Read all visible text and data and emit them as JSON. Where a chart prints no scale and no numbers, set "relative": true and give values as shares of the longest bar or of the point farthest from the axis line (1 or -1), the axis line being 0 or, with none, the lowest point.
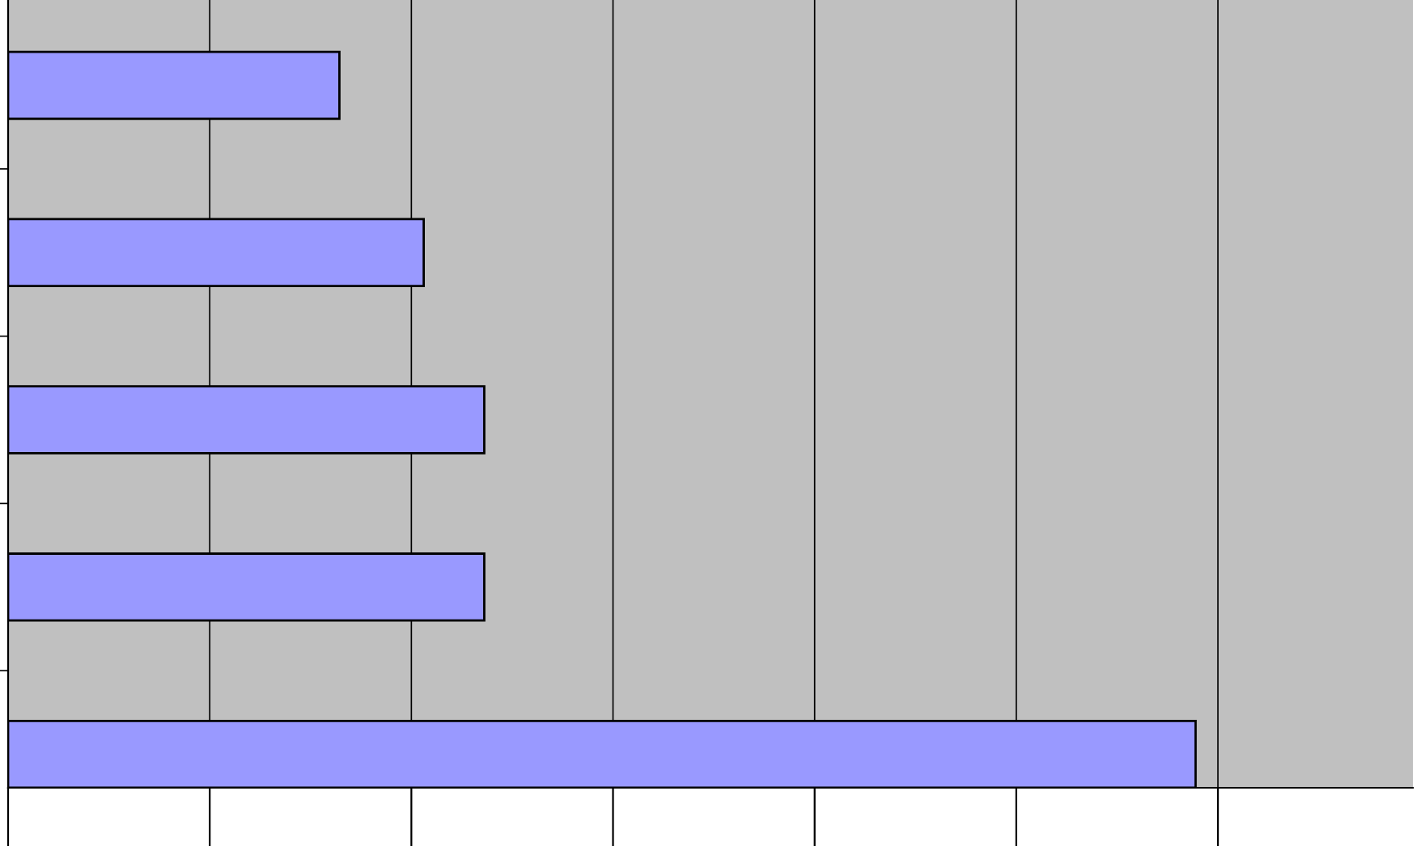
{
  "chart_data": {
    "type": "bar",
    "orientation": "horizontal",
    "relative": true,
    "categories": [
      null,
      null,
      null,
      null,
      null
    ],
    "values": [
      0.279,
      0.35,
      0.401,
      0.401,
      1
    ],
    "color": "#9999ff",
    "grid": "x"
  }
}
